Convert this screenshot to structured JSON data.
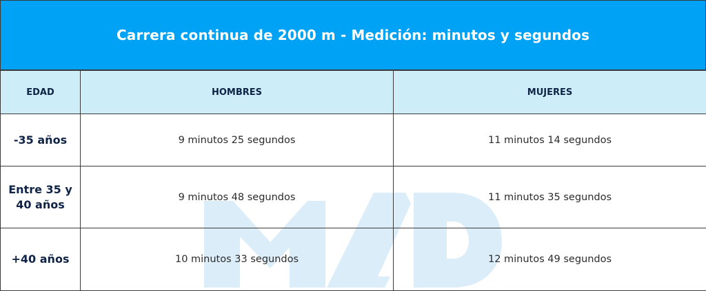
{
  "title": "Carrera continua de 2000 m - Medición: minutos y segundos",
  "headers": {
    "edad": "EDAD",
    "hombres": "HOMBRES",
    "mujeres": "MUJERES"
  },
  "rows": [
    {
      "edad": "-35 años",
      "hombres": "9 minutos 25 segundos",
      "mujeres": "11 minutos 14 segundos"
    },
    {
      "edad": "Entre 35 y 40 años",
      "hombres": "9 minutos 48 segundos",
      "mujeres": "11 minutos 35 segundos"
    },
    {
      "edad": "+40 años",
      "hombres": "10 minutos 33 segundos",
      "mujeres": "12 minutos 49 segundos"
    }
  ],
  "watermark": {
    "text": "MAD",
    "color": "#dcedfa"
  },
  "colors": {
    "title_background": "#00a2f5",
    "header_background": "#cdeef9",
    "header_text": "#0f2346",
    "border": "#3a3a3a"
  }
}
